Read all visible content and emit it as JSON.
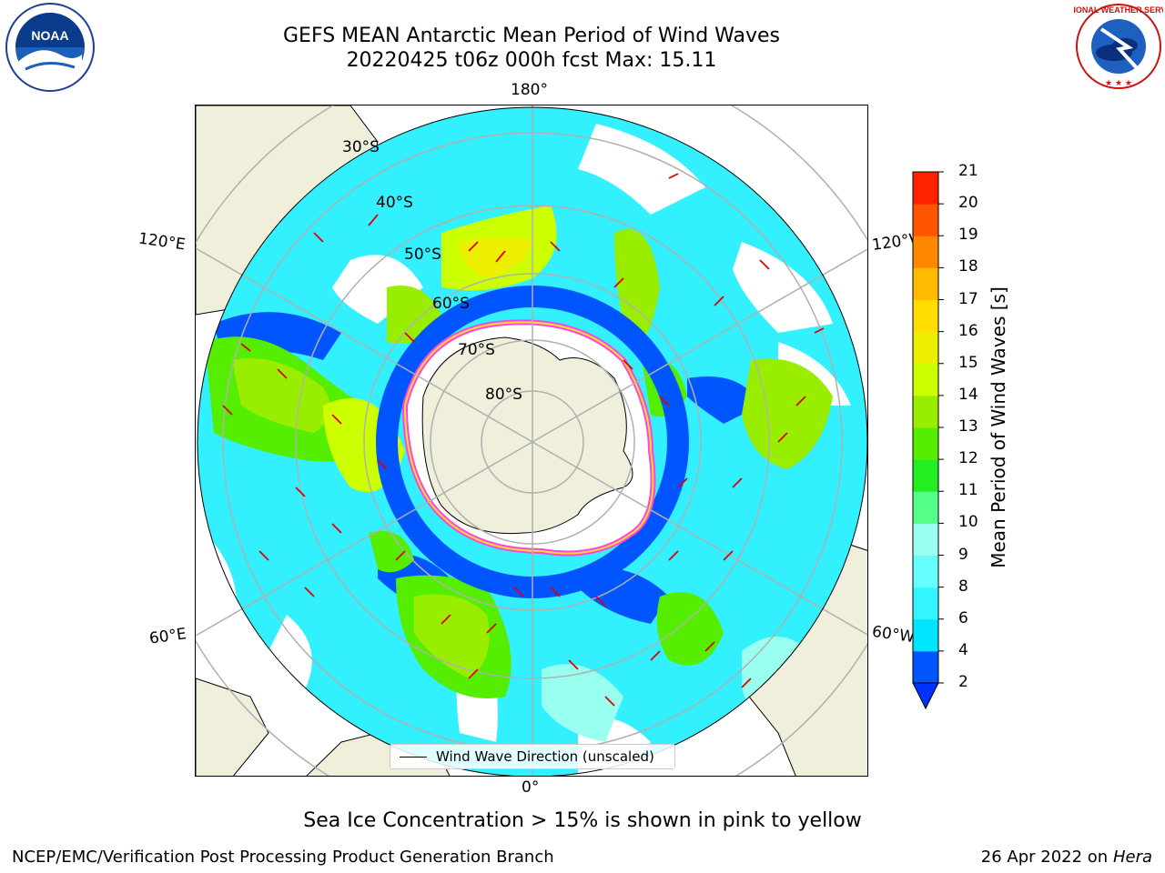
{
  "title_line1": "GEFS MEAN Antarctic Mean Period of Wind Waves",
  "title_line2": "20220425 t06z 000h fcst   Max: 15.11",
  "footer_note": "Sea Ice Concentration > 15% is shown in pink to yellow",
  "credit_left": "NCEP/EMC/Verification Post Processing Product Generation Branch",
  "credit_right_date": "26 Apr 2022 on ",
  "credit_right_host": "Hera",
  "legend_label": "Wind Wave Direction (unscaled)",
  "logos": {
    "left_logo": "NOAA",
    "right_logo": "NATIONAL WEATHER SERVICE"
  },
  "map": {
    "projection": "south polar stereographic",
    "longitude_labels": [
      "180°",
      "120°E",
      "120°W",
      "60°E",
      "60°W",
      "0°"
    ],
    "latitude_labels": [
      "30°S",
      "40°S",
      "50°S",
      "60°S",
      "70°S",
      "80°S"
    ]
  },
  "colorbar": {
    "label": "Mean Period of Wind Waves [s]",
    "ticks": [
      "2",
      "4",
      "6",
      "8",
      "9",
      "10",
      "11",
      "12",
      "13",
      "14",
      "15",
      "16",
      "17",
      "18",
      "19",
      "20",
      "21"
    ],
    "colors": [
      "#0055ff",
      "#00e5ff",
      "#33f5ff",
      "#66ffff",
      "#99ffee",
      "#55ff88",
      "#22ee22",
      "#55ee00",
      "#99ee00",
      "#ccff00",
      "#eeee00",
      "#ffdd00",
      "#ffbb00",
      "#ff8800",
      "#ff5500",
      "#ff2200"
    ],
    "under_color": "#0033ff"
  }
}
